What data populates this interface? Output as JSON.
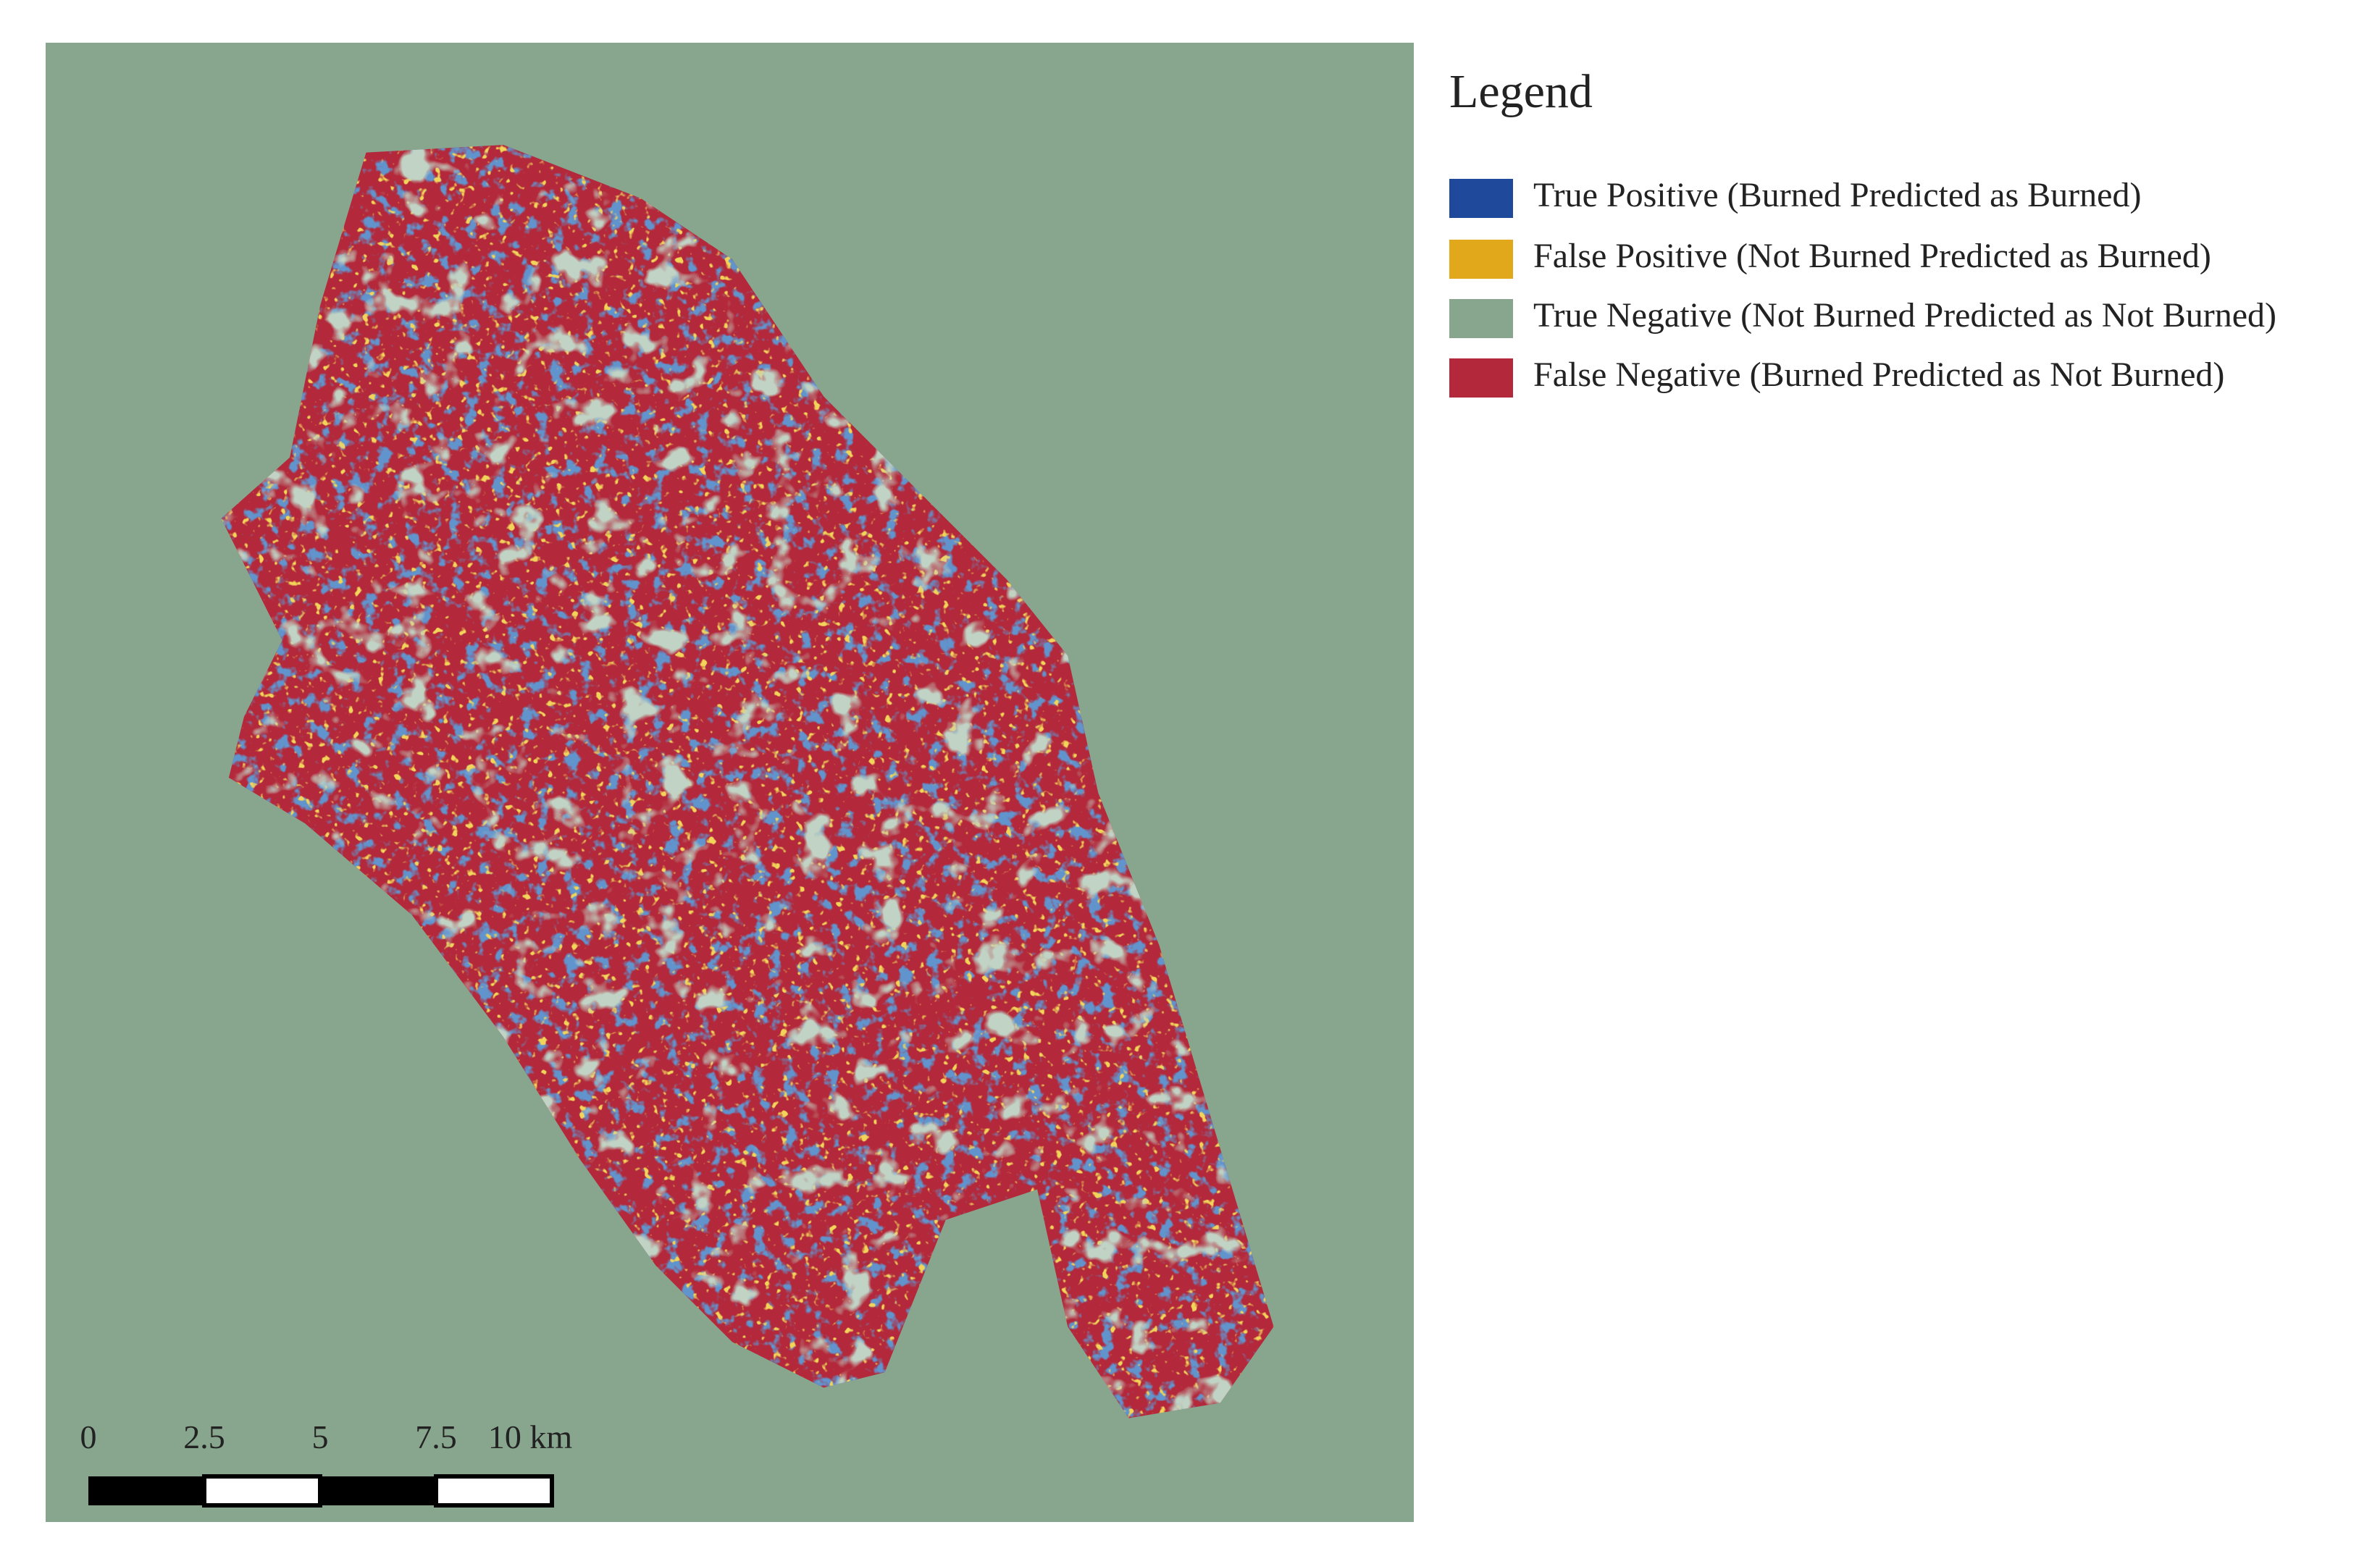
{
  "legend": {
    "title": "Legend",
    "items": [
      {
        "label": "True Positive (Burned Predicted as Burned)",
        "color": "#1f4a9c"
      },
      {
        "label": "False Positive (Not Burned Predicted as Burned)",
        "color": "#e0a81a"
      },
      {
        "label": "True Negative (Not Burned Predicted as Not Burned)",
        "color": "#87a68d"
      },
      {
        "label": "False Negative (Burned Predicted as Not Burned)",
        "color": "#b3283a"
      }
    ]
  },
  "scale_bar": {
    "labels": [
      "0",
      "2.5",
      "5",
      "7.5",
      "10 km"
    ]
  }
}
